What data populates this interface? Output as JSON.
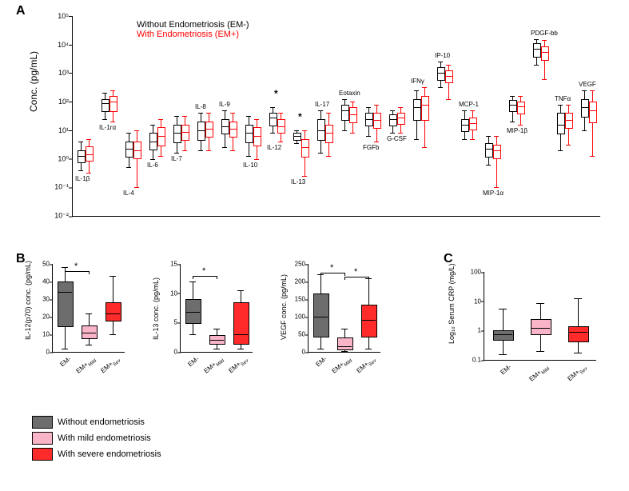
{
  "colors": {
    "em_minus": "#000000",
    "em_plus": "#ff0000",
    "legend_grey": "#6d6d6d",
    "legend_pink": "#f9b4c8",
    "legend_red": "#ff2a2a",
    "bg": "#ffffff"
  },
  "panelA": {
    "label": "A",
    "ylabel": "Conc. (pg/mL)",
    "y_ticks": [
      {
        "exp": -2,
        "label": "10⁻²"
      },
      {
        "exp": -1,
        "label": "10⁻¹"
      },
      {
        "exp": 0,
        "label": "10⁰"
      },
      {
        "exp": 1,
        "label": "10¹"
      },
      {
        "exp": 2,
        "label": "10²"
      },
      {
        "exp": 3,
        "label": "10³"
      },
      {
        "exp": 4,
        "label": "10⁴"
      },
      {
        "exp": 5,
        "label": "10⁵"
      }
    ],
    "y_min_exp": -2,
    "y_max_exp": 5,
    "legend": {
      "em_minus": "Without Endometriosis (EM-)",
      "em_plus": "With Endometriosis (EM+)"
    },
    "analytes": [
      {
        "name": "IL-1β",
        "label_pos": "below",
        "em_minus": {
          "low": -0.4,
          "q1": -0.1,
          "med": 0.1,
          "q3": 0.3,
          "high": 0.6
        },
        "em_plus": {
          "low": -0.5,
          "q1": -0.05,
          "med": 0.15,
          "q3": 0.45,
          "high": 0.7
        }
      },
      {
        "name": "IL-1rα",
        "label_pos": "below",
        "em_minus": {
          "low": 1.4,
          "q1": 1.7,
          "med": 1.95,
          "q3": 2.1,
          "high": 2.3
        },
        "em_plus": {
          "low": 1.3,
          "q1": 1.7,
          "med": 2.0,
          "q3": 2.2,
          "high": 2.4
        }
      },
      {
        "name": "IL-4",
        "label_pos": "below",
        "em_minus": {
          "low": -0.3,
          "q1": 0.1,
          "med": 0.35,
          "q3": 0.6,
          "high": 0.9
        },
        "em_plus": {
          "low": -1.0,
          "q1": 0.05,
          "med": 0.3,
          "q3": 0.6,
          "high": 1.0
        }
      },
      {
        "name": "IL-6",
        "label_pos": "below",
        "em_minus": {
          "low": 0.0,
          "q1": 0.35,
          "med": 0.6,
          "q3": 0.9,
          "high": 1.2
        },
        "em_plus": {
          "low": 0.1,
          "q1": 0.5,
          "med": 0.8,
          "q3": 1.1,
          "high": 1.4
        }
      },
      {
        "name": "IL-7",
        "label_pos": "below",
        "em_minus": {
          "low": 0.2,
          "q1": 0.6,
          "med": 0.9,
          "q3": 1.2,
          "high": 1.5
        },
        "em_plus": {
          "low": 0.3,
          "q1": 0.7,
          "med": 0.95,
          "q3": 1.2,
          "high": 1.5
        }
      },
      {
        "name": "IL-8",
        "label_pos": "above",
        "em_minus": {
          "low": 0.3,
          "q1": 0.7,
          "med": 1.0,
          "q3": 1.3,
          "high": 1.6
        },
        "em_plus": {
          "low": 0.3,
          "q1": 0.8,
          "med": 1.05,
          "q3": 1.3,
          "high": 1.6
        }
      },
      {
        "name": "IL-9",
        "label_pos": "above",
        "em_minus": {
          "low": 0.4,
          "q1": 0.9,
          "med": 1.15,
          "q3": 1.4,
          "high": 1.7
        },
        "em_plus": {
          "low": 0.3,
          "q1": 0.8,
          "med": 1.05,
          "q3": 1.3,
          "high": 1.6
        }
      },
      {
        "name": "IL-10",
        "label_pos": "below",
        "em_minus": {
          "low": 0.1,
          "q1": 0.6,
          "med": 0.9,
          "q3": 1.2,
          "high": 1.5
        },
        "em_plus": {
          "low": 0.0,
          "q1": 0.5,
          "med": 0.8,
          "q3": 1.1,
          "high": 1.4
        }
      },
      {
        "name": "IL-12",
        "label_pos": "below",
        "sig": "*",
        "em_minus": {
          "low": 0.9,
          "q1": 1.2,
          "med": 1.45,
          "q3": 1.6,
          "high": 1.8
        },
        "em_plus": {
          "low": 0.6,
          "q1": 0.95,
          "med": 1.15,
          "q3": 1.4,
          "high": 1.6
        }
      },
      {
        "name": "IL-13",
        "label_pos": "below",
        "sig": "*",
        "em_minus": {
          "low": 0.55,
          "q1": 0.7,
          "med": 0.8,
          "q3": 0.9,
          "high": 1.0
        },
        "em_plus": {
          "low": -0.6,
          "q1": 0.1,
          "med": 0.4,
          "q3": 0.7,
          "high": 1.0
        }
      },
      {
        "name": "IL-17",
        "label_pos": "above",
        "em_minus": {
          "low": 0.2,
          "q1": 0.7,
          "med": 1.0,
          "q3": 1.4,
          "high": 1.7
        },
        "em_plus": {
          "low": 0.1,
          "q1": 0.6,
          "med": 0.9,
          "q3": 1.2,
          "high": 1.6
        }
      },
      {
        "name": "Eotaxin",
        "label_pos": "above",
        "em_minus": {
          "low": 1.0,
          "q1": 1.4,
          "med": 1.7,
          "q3": 1.9,
          "high": 2.1
        },
        "em_plus": {
          "low": 0.9,
          "q1": 1.3,
          "med": 1.55,
          "q3": 1.8,
          "high": 2.0
        }
      },
      {
        "name": "FGFb",
        "label_pos": "below",
        "em_minus": {
          "low": 0.8,
          "q1": 1.2,
          "med": 1.4,
          "q3": 1.6,
          "high": 1.8
        },
        "em_plus": {
          "low": 0.6,
          "q1": 1.1,
          "med": 1.35,
          "q3": 1.6,
          "high": 1.9
        }
      },
      {
        "name": "G-CSF",
        "label_pos": "below",
        "em_minus": {
          "low": 0.9,
          "q1": 1.2,
          "med": 1.4,
          "q3": 1.55,
          "high": 1.7
        },
        "em_plus": {
          "low": 0.9,
          "q1": 1.25,
          "med": 1.45,
          "q3": 1.6,
          "high": 1.8
        }
      },
      {
        "name": "IFNγ",
        "label_pos": "above",
        "em_minus": {
          "low": 0.7,
          "q1": 1.4,
          "med": 1.8,
          "q3": 2.1,
          "high": 2.4
        },
        "em_plus": {
          "low": 0.4,
          "q1": 1.4,
          "med": 1.9,
          "q3": 2.2,
          "high": 2.5
        }
      },
      {
        "name": "IP-10",
        "label_pos": "above",
        "em_minus": {
          "low": 2.5,
          "q1": 2.8,
          "med": 3.0,
          "q3": 3.2,
          "high": 3.4
        },
        "em_plus": {
          "low": 2.1,
          "q1": 2.7,
          "med": 2.9,
          "q3": 3.1,
          "high": 3.3
        }
      },
      {
        "name": "MCP-1",
        "label_pos": "above",
        "em_minus": {
          "low": 0.7,
          "q1": 1.0,
          "med": 1.2,
          "q3": 1.4,
          "high": 1.7
        },
        "em_plus": {
          "low": 0.7,
          "q1": 1.05,
          "med": 1.25,
          "q3": 1.45,
          "high": 1.7
        }
      },
      {
        "name": "MIP-1α",
        "label_pos": "below",
        "em_minus": {
          "low": -0.2,
          "q1": 0.1,
          "med": 0.35,
          "q3": 0.55,
          "high": 0.8
        },
        "em_plus": {
          "low": -1.0,
          "q1": 0.05,
          "med": 0.3,
          "q3": 0.5,
          "high": 0.8
        }
      },
      {
        "name": "MIP-1β",
        "label_pos": "below",
        "em_minus": {
          "low": 1.3,
          "q1": 1.7,
          "med": 1.9,
          "q3": 2.05,
          "high": 2.2
        },
        "em_plus": {
          "low": 1.2,
          "q1": 1.6,
          "med": 1.85,
          "q3": 2.0,
          "high": 2.2
        }
      },
      {
        "name": "PDGF-bb",
        "label_pos": "above",
        "em_minus": {
          "low": 3.3,
          "q1": 3.6,
          "med": 3.85,
          "q3": 4.05,
          "high": 4.2
        },
        "em_plus": {
          "low": 2.8,
          "q1": 3.5,
          "med": 3.75,
          "q3": 3.95,
          "high": 4.15
        }
      },
      {
        "name": "TNFα",
        "label_pos": "above",
        "em_minus": {
          "low": 0.3,
          "q1": 0.9,
          "med": 1.2,
          "q3": 1.6,
          "high": 1.9
        },
        "em_plus": {
          "low": 0.5,
          "q1": 1.1,
          "med": 1.35,
          "q3": 1.6,
          "high": 1.9
        }
      },
      {
        "name": "VEGF",
        "label_pos": "above",
        "em_minus": {
          "low": 1.0,
          "q1": 1.5,
          "med": 1.8,
          "q3": 2.1,
          "high": 2.4
        },
        "em_plus": {
          "low": 0.1,
          "q1": 1.3,
          "med": 1.7,
          "q3": 2.0,
          "high": 2.4
        }
      }
    ]
  },
  "panelB": {
    "label": "B",
    "subplots": [
      {
        "ylabel": "IL-12(p70) conc. (pg/mL)",
        "ymax": 50,
        "yticks": [
          0,
          10,
          20,
          30,
          40,
          50
        ],
        "groups": [
          {
            "label": "EM-",
            "fill": "#6d6d6d",
            "low": 2,
            "q1": 15,
            "med": 34,
            "q3": 40,
            "high": 48
          },
          {
            "label": "EM+_Mild",
            "sub": "Mild",
            "fill": "#f9b4c8",
            "low": 4,
            "q1": 8,
            "med": 11,
            "q3": 15,
            "high": 22
          },
          {
            "label": "EM+_Sev",
            "sub": "Sev",
            "fill": "#ff2a2a",
            "low": 10,
            "q1": 18,
            "med": 22,
            "q3": 28,
            "high": 43
          }
        ],
        "sig": [
          {
            "from": 0,
            "to": 1,
            "y": 46,
            "mark": "*"
          }
        ]
      },
      {
        "ylabel": "IL-13 conc. (pg/mL)",
        "ymax": 15,
        "yticks": [
          0,
          5,
          10,
          15
        ],
        "groups": [
          {
            "label": "EM-",
            "fill": "#6d6d6d",
            "low": 3,
            "q1": 5,
            "med": 6.8,
            "q3": 9,
            "high": 12
          },
          {
            "label": "EM+_Mild",
            "sub": "Mild",
            "fill": "#f9b4c8",
            "low": 0.5,
            "q1": 1.5,
            "med": 2,
            "q3": 2.8,
            "high": 4
          },
          {
            "label": "EM+_Sev",
            "sub": "Sev",
            "fill": "#ff2a2a",
            "low": 0.5,
            "q1": 1.5,
            "med": 3,
            "q3": 8.5,
            "high": 10.5
          }
        ],
        "sig": [
          {
            "from": 0,
            "to": 1,
            "y": 13,
            "mark": "*"
          }
        ]
      },
      {
        "ylabel": "VEGF conc. (pg/mL)",
        "ymax": 250,
        "yticks": [
          0,
          50,
          100,
          150,
          200,
          250
        ],
        "groups": [
          {
            "label": "EM-",
            "fill": "#6d6d6d",
            "low": 10,
            "q1": 45,
            "med": 100,
            "q3": 165,
            "high": 220
          },
          {
            "label": "EM+_Mild",
            "sub": "Mild",
            "fill": "#f9b4c8",
            "low": 2,
            "q1": 8,
            "med": 15,
            "q3": 42,
            "high": 65
          },
          {
            "label": "EM+_Sev",
            "sub": "Sev",
            "fill": "#ff2a2a",
            "low": 10,
            "q1": 45,
            "med": 90,
            "q3": 135,
            "high": 210
          }
        ],
        "sig": [
          {
            "from": 0,
            "to": 1,
            "y": 225,
            "mark": "*"
          },
          {
            "from": 1,
            "to": 2,
            "y": 213,
            "mark": "*"
          }
        ]
      }
    ]
  },
  "panelC": {
    "label": "C",
    "ylabel": "Log₁₀ Serum CRP (mg/L)",
    "y_ticks": [
      {
        "exp": -1,
        "label": "0.1"
      },
      {
        "exp": 0,
        "label": "1"
      },
      {
        "exp": 1,
        "label": "10"
      },
      {
        "exp": 2,
        "label": "100"
      }
    ],
    "y_min_exp": -1,
    "y_max_exp": 2,
    "groups": [
      {
        "label": "EM-",
        "fill": "#6d6d6d",
        "low": -0.8,
        "q1": -0.3,
        "med": -0.12,
        "q3": 0.0,
        "high": 0.75
      },
      {
        "label": "EM+_Mild",
        "sub": "Mild",
        "fill": "#f9b4c8",
        "low": -0.7,
        "q1": -0.1,
        "med": 0.1,
        "q3": 0.4,
        "high": 0.95
      },
      {
        "label": "EM+_Sev",
        "sub": "Sev",
        "fill": "#ff2a2a",
        "low": -0.75,
        "q1": -0.35,
        "med": -0.05,
        "q3": 0.15,
        "high": 1.1
      }
    ]
  },
  "legend_bottom": [
    {
      "swatch": "#6d6d6d",
      "text": "Without endometriosis"
    },
    {
      "swatch": "#f9b4c8",
      "text": "With mild endometriosis"
    },
    {
      "swatch": "#ff2a2a",
      "text": "With severe endometriosis"
    }
  ]
}
